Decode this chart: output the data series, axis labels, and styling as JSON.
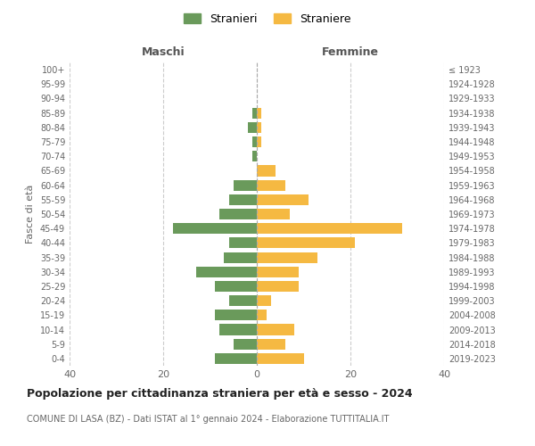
{
  "age_groups": [
    "100+",
    "95-99",
    "90-94",
    "85-89",
    "80-84",
    "75-79",
    "70-74",
    "65-69",
    "60-64",
    "55-59",
    "50-54",
    "45-49",
    "40-44",
    "35-39",
    "30-34",
    "25-29",
    "20-24",
    "15-19",
    "10-14",
    "5-9",
    "0-4"
  ],
  "birth_years": [
    "≤ 1923",
    "1924-1928",
    "1929-1933",
    "1934-1938",
    "1939-1943",
    "1944-1948",
    "1949-1953",
    "1954-1958",
    "1959-1963",
    "1964-1968",
    "1969-1973",
    "1974-1978",
    "1979-1983",
    "1984-1988",
    "1989-1993",
    "1994-1998",
    "1999-2003",
    "2004-2008",
    "2009-2013",
    "2014-2018",
    "2019-2023"
  ],
  "maschi": [
    0,
    0,
    0,
    1,
    2,
    1,
    1,
    0,
    5,
    6,
    8,
    18,
    6,
    7,
    13,
    9,
    6,
    9,
    8,
    5,
    9
  ],
  "femmine": [
    0,
    0,
    0,
    1,
    1,
    1,
    0,
    4,
    6,
    11,
    7,
    31,
    21,
    13,
    9,
    9,
    3,
    2,
    8,
    6,
    10
  ],
  "color_maschi": "#6a9a5b",
  "color_femmine": "#f5b942",
  "title": "Popolazione per cittadinanza straniera per età e sesso - 2024",
  "subtitle": "COMUNE DI LASA (BZ) - Dati ISTAT al 1° gennaio 2024 - Elaborazione TUTTITALIA.IT",
  "xlabel_left": "Maschi",
  "xlabel_right": "Femmine",
  "ylabel_left": "Fasce di età",
  "legend_maschi": "Stranieri",
  "legend_femmine": "Straniere",
  "xlim": 40,
  "background_color": "#ffffff",
  "grid_color": "#cccccc"
}
